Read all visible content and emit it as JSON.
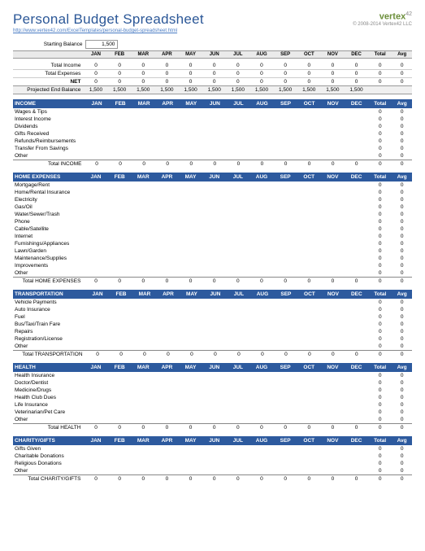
{
  "header": {
    "title": "Personal Budget Spreadsheet",
    "url": "http://www.vertex42.com/ExcelTemplates/personal-budget-spreadsheet.html",
    "logo": "vertex",
    "logo_suffix": "42",
    "copyright": "© 2008-2014 Vertex42 LLC"
  },
  "starting": {
    "label": "Starting Balance",
    "value": "1,500"
  },
  "months": [
    "JAN",
    "FEB",
    "MAR",
    "APR",
    "MAY",
    "JUN",
    "JUL",
    "AUG",
    "SEP",
    "OCT",
    "NOV",
    "DEC"
  ],
  "tot_label": "Total",
  "avg_label": "Avg",
  "summary": [
    {
      "label": "Total Income",
      "vals": [
        "0",
        "0",
        "0",
        "0",
        "0",
        "0",
        "0",
        "0",
        "0",
        "0",
        "0",
        "0"
      ],
      "tot": "0",
      "avg": "0"
    },
    {
      "label": "Total Expenses",
      "vals": [
        "0",
        "0",
        "0",
        "0",
        "0",
        "0",
        "0",
        "0",
        "0",
        "0",
        "0",
        "0"
      ],
      "tot": "0",
      "avg": "0"
    }
  ],
  "net": {
    "label": "NET",
    "vals": [
      "0",
      "0",
      "0",
      "0",
      "0",
      "0",
      "0",
      "0",
      "0",
      "0",
      "0",
      "0"
    ],
    "tot": "0",
    "avg": "0"
  },
  "projected": {
    "label": "Projected End Balance",
    "vals": [
      "1,500",
      "1,500",
      "1,500",
      "1,500",
      "1,500",
      "1,500",
      "1,500",
      "1,500",
      "1,500",
      "1,500",
      "1,500",
      "1,500"
    ],
    "tot": "",
    "avg": ""
  },
  "sections": [
    {
      "name": "INCOME",
      "color": "green",
      "rows": [
        "Wages & Tips",
        "Interest Income",
        "Dividends",
        "Gifts Received",
        "Refunds/Reimbursements",
        "Transfer From Savings",
        "Other"
      ],
      "total_label": "Total INCOME"
    },
    {
      "name": "HOME EXPENSES",
      "color": "blue",
      "rows": [
        "Mortgage/Rent",
        "Home/Rental Insurance",
        "Electricity",
        "Gas/Oil",
        "Water/Sewer/Trash",
        "Phone",
        "Cable/Satellite",
        "Internet",
        "Furnishings/Appliances",
        "Lawn/Garden",
        "Maintenance/Supplies",
        "Improvements",
        "Other"
      ],
      "total_label": "Total HOME EXPENSES"
    },
    {
      "name": "TRANSPORTATION",
      "color": "blue",
      "rows": [
        "Vehicle Payments",
        "Auto Insurance",
        "Fuel",
        "Bus/Taxi/Train Fare",
        "Repairs",
        "Registration/License",
        "Other"
      ],
      "total_label": "Total TRANSPORTATION"
    },
    {
      "name": "HEALTH",
      "color": "blue",
      "rows": [
        "Health Insurance",
        "Doctor/Dentist",
        "Medicine/Drugs",
        "Health Club Dues",
        "Life Insurance",
        "Veterinarian/Pet Care",
        "Other"
      ],
      "total_label": "Total HEALTH"
    },
    {
      "name": "CHARITY/GIFTS",
      "color": "blue",
      "rows": [
        "Gifts Given",
        "Charitable Donations",
        "Religious Donations",
        "Other"
      ],
      "total_label": "Total CHARITY/GIFTS"
    }
  ],
  "zeros": [
    "0",
    "0",
    "0",
    "0",
    "0",
    "0",
    "0",
    "0",
    "0",
    "0",
    "0",
    "0"
  ],
  "colors": {
    "section_header": "#2d5a9e",
    "green_fill": "#d9e4c7",
    "blue_fill": "#c8d1e6",
    "title": "#2b5797"
  }
}
